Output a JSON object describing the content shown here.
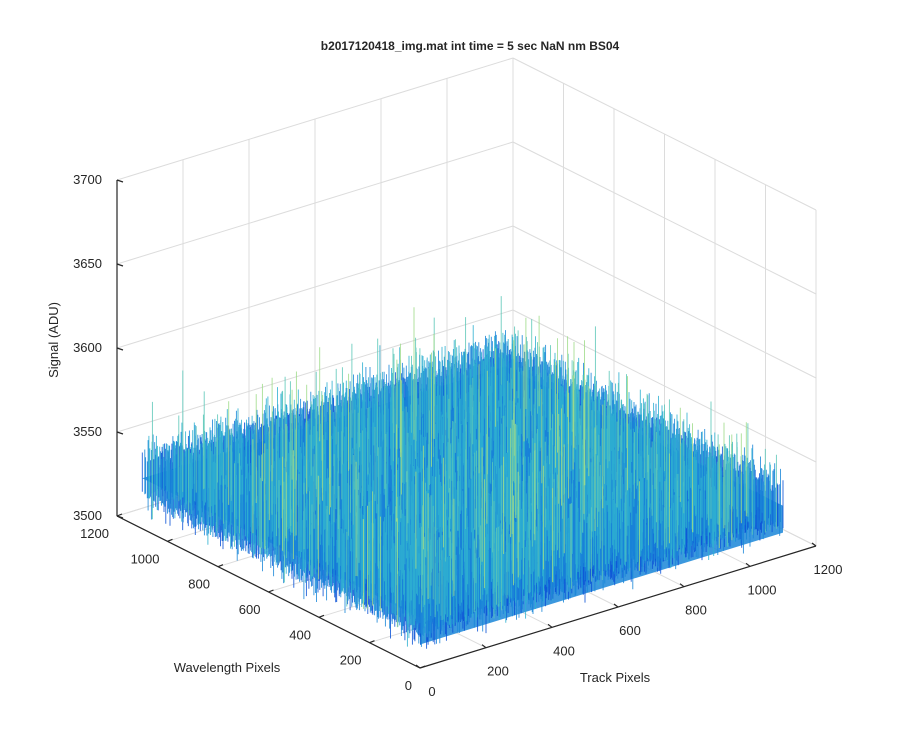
{
  "chart_data": {
    "type": "surface",
    "title": "b2017120418_img.mat int time = 5 sec  NaN nm BS04",
    "xlabel": "Track Pixels",
    "ylabel": "Wavelength Pixels",
    "zlabel": "Signal (ADU)",
    "xlim": [
      0,
      1200
    ],
    "ylim": [
      0,
      1200
    ],
    "zlim": [
      3500,
      3700
    ],
    "xticks": [
      0,
      200,
      400,
      600,
      800,
      1000,
      1200
    ],
    "yticks": [
      0,
      200,
      400,
      600,
      800,
      1000,
      1200
    ],
    "zticks": [
      3500,
      3550,
      3600,
      3650,
      3700
    ],
    "surface": {
      "x_extent": [
        0,
        1100
      ],
      "y_extent": [
        0,
        1100
      ],
      "mean_signal": 3530,
      "noise_range": [
        3505,
        3640
      ]
    },
    "grid": true,
    "colormap": [
      "#0a52d6",
      "#1a86d8",
      "#2fb0d0",
      "#5cc8b8",
      "#9edc8a"
    ]
  }
}
